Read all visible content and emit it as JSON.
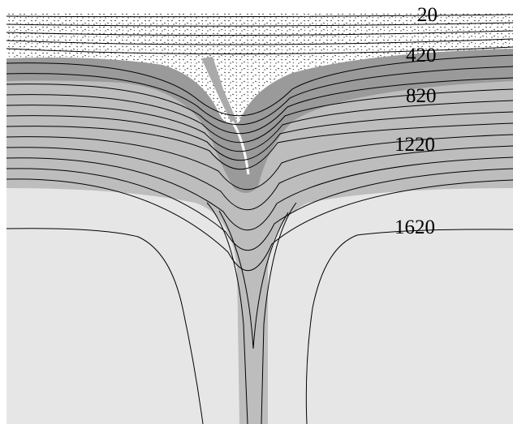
{
  "contour_labels": [
    "20",
    "420",
    "820",
    "1220",
    "1620"
  ]
}
